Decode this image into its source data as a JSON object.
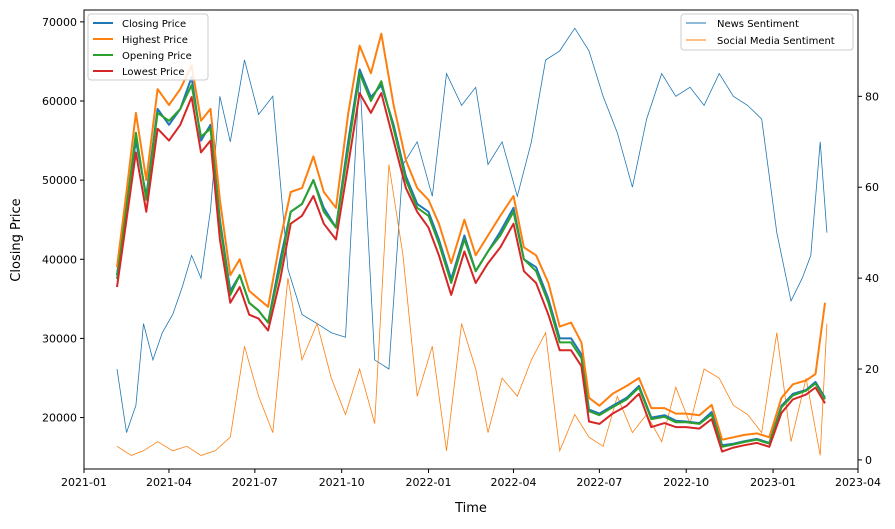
{
  "chart_data": {
    "type": "line",
    "xlabel": "Time",
    "ylabel": "Closing Price",
    "ylim": [
      13500,
      71500
    ],
    "y2lim": [
      -2.0,
      99.0
    ],
    "x_range": [
      "2021-01-01",
      "2023-04-01"
    ],
    "x_ticks": [
      "2021-01",
      "2021-04",
      "2021-07",
      "2021-10",
      "2022-01",
      "2022-04",
      "2022-07",
      "2022-10",
      "2023-01",
      "2023-04"
    ],
    "y_ticks": [
      20000,
      30000,
      40000,
      50000,
      60000,
      70000
    ],
    "y2_ticks": [
      0,
      20,
      40,
      60,
      80
    ],
    "legend_left": {
      "placement": "top-left",
      "entries": [
        {
          "label": "Closing Price",
          "color": "#1f77b4"
        },
        {
          "label": "Highest Price",
          "color": "#ff7f0e"
        },
        {
          "label": "Opening Price",
          "color": "#2ca02c"
        },
        {
          "label": "Lowest Price",
          "color": "#d62728"
        }
      ]
    },
    "legend_right": {
      "placement": "top-right",
      "entries": [
        {
          "label": "News Sentiment",
          "color": "#1f77b4"
        },
        {
          "label": "Social Media Sentiment",
          "color": "#ff7f0e"
        }
      ]
    },
    "price_series": {
      "x": [
        "2021-02-05",
        "2021-02-15",
        "2021-02-25",
        "2021-03-08",
        "2021-03-20",
        "2021-04-01",
        "2021-04-13",
        "2021-04-25",
        "2021-05-05",
        "2021-05-15",
        "2021-05-25",
        "2021-06-05",
        "2021-06-15",
        "2021-06-25",
        "2021-07-05",
        "2021-07-15",
        "2021-07-28",
        "2021-08-08",
        "2021-08-20",
        "2021-09-01",
        "2021-09-12",
        "2021-09-25",
        "2021-10-08",
        "2021-10-20",
        "2021-11-01",
        "2021-11-12",
        "2021-11-25",
        "2021-12-08",
        "2021-12-20",
        "2022-01-01",
        "2022-01-12",
        "2022-01-25",
        "2022-02-08",
        "2022-02-20",
        "2022-03-05",
        "2022-03-18",
        "2022-04-01",
        "2022-04-12",
        "2022-04-25",
        "2022-05-08",
        "2022-05-20",
        "2022-06-01",
        "2022-06-12",
        "2022-06-20",
        "2022-07-01",
        "2022-07-15",
        "2022-07-30",
        "2022-08-12",
        "2022-08-25",
        "2022-09-08",
        "2022-09-20",
        "2022-10-01",
        "2022-10-15",
        "2022-10-28",
        "2022-11-08",
        "2022-11-20",
        "2022-12-01",
        "2022-12-15",
        "2022-12-28",
        "2023-01-10",
        "2023-01-22",
        "2023-02-05",
        "2023-02-15",
        "2023-02-25"
      ],
      "close": [
        38000,
        47000,
        55000,
        48000,
        59000,
        57000,
        59000,
        63000,
        55000,
        57000,
        45000,
        36000,
        38000,
        34500,
        33500,
        32000,
        40000,
        46000,
        47000,
        50000,
        46500,
        44000,
        55000,
        64000,
        60500,
        62000,
        57000,
        50500,
        47000,
        46000,
        42500,
        37500,
        43000,
        38500,
        41000,
        43500,
        46500,
        40000,
        39000,
        35000,
        30000,
        30000,
        28000,
        21000,
        20500,
        21500,
        22500,
        24000,
        20000,
        20300,
        19600,
        19500,
        19300,
        20700,
        16500,
        16700,
        17000,
        17300,
        16800,
        21500,
        23000,
        23500,
        24500,
        22500
      ],
      "high": [
        39000,
        48500,
        58500,
        50000,
        61500,
        59500,
        61500,
        64500,
        57500,
        59000,
        47500,
        38000,
        40000,
        36000,
        35000,
        34000,
        42500,
        48500,
        49000,
        53000,
        48500,
        46500,
        58500,
        67000,
        63500,
        68500,
        59500,
        52500,
        49000,
        47500,
        44500,
        39500,
        45000,
        40500,
        43000,
        45500,
        48000,
        41500,
        40500,
        37000,
        31500,
        32000,
        29500,
        22500,
        21500,
        23000,
        24000,
        25000,
        21200,
        21200,
        20500,
        20500,
        20300,
        21600,
        17200,
        17500,
        17800,
        18000,
        17500,
        22500,
        24200,
        24700,
        25500,
        34500
      ],
      "open": [
        37500,
        46500,
        56000,
        47500,
        58500,
        57500,
        59000,
        62000,
        55500,
        56500,
        44500,
        35500,
        38000,
        34500,
        33500,
        32000,
        39000,
        46000,
        47000,
        50000,
        46000,
        44000,
        54000,
        63500,
        60000,
        62500,
        56500,
        50000,
        46500,
        45500,
        42000,
        37000,
        42500,
        38500,
        41000,
        43000,
        46000,
        40000,
        38500,
        34500,
        29500,
        29500,
        27500,
        20800,
        20300,
        21300,
        22300,
        23800,
        19800,
        20100,
        19400,
        19400,
        19200,
        20400,
        16300,
        16600,
        16900,
        17200,
        16700,
        21300,
        22800,
        23400,
        24300,
        22300
      ],
      "low": [
        36500,
        45000,
        53500,
        46000,
        56500,
        55000,
        57000,
        60500,
        53500,
        55000,
        42500,
        34500,
        36500,
        33000,
        32500,
        31000,
        37500,
        44500,
        45500,
        48000,
        44500,
        42500,
        52000,
        61000,
        58500,
        61000,
        55000,
        49000,
        46000,
        44000,
        40500,
        35500,
        41000,
        37000,
        39500,
        41500,
        44500,
        38500,
        37000,
        33000,
        28500,
        28500,
        26500,
        19500,
        19200,
        20500,
        21500,
        23000,
        18800,
        19300,
        18800,
        18800,
        18600,
        19800,
        15700,
        16200,
        16500,
        16800,
        16300,
        20600,
        22300,
        22900,
        23800,
        21800
      ]
    },
    "news_sentiment": {
      "x": [
        "2021-02-05",
        "2021-02-15",
        "2021-02-25",
        "2021-03-05",
        "2021-03-15",
        "2021-03-25",
        "2021-04-05",
        "2021-04-15",
        "2021-04-25",
        "2021-05-05",
        "2021-05-15",
        "2021-05-25",
        "2021-06-05",
        "2021-06-20",
        "2021-07-05",
        "2021-07-20",
        "2021-08-05",
        "2021-08-20",
        "2021-09-05",
        "2021-09-20",
        "2021-10-05",
        "2021-10-20",
        "2021-11-05",
        "2021-11-20",
        "2021-12-05",
        "2021-12-20",
        "2022-01-05",
        "2022-01-20",
        "2022-02-05",
        "2022-02-20",
        "2022-03-05",
        "2022-03-20",
        "2022-04-05",
        "2022-04-20",
        "2022-05-05",
        "2022-05-20",
        "2022-06-05",
        "2022-06-20",
        "2022-07-05",
        "2022-07-20",
        "2022-08-05",
        "2022-08-20",
        "2022-09-05",
        "2022-09-20",
        "2022-10-05",
        "2022-10-20",
        "2022-11-05",
        "2022-11-20",
        "2022-12-05",
        "2022-12-20",
        "2023-01-05",
        "2023-01-20",
        "2023-02-01",
        "2023-02-10",
        "2023-02-20",
        "2023-02-27"
      ],
      "values": [
        20,
        6,
        12,
        30,
        22,
        28,
        32,
        38,
        45,
        40,
        55,
        80,
        70,
        88,
        76,
        80,
        42,
        32,
        30,
        28,
        27,
        85,
        22,
        20,
        65,
        70,
        58,
        85,
        78,
        82,
        65,
        70,
        58,
        70,
        88,
        90,
        95,
        90,
        80,
        72,
        60,
        75,
        85,
        80,
        82,
        78,
        85,
        80,
        78,
        75,
        50,
        35,
        40,
        45,
        70,
        50
      ]
    },
    "social_sentiment": {
      "x": [
        "2021-02-05",
        "2021-02-20",
        "2021-03-05",
        "2021-03-20",
        "2021-04-05",
        "2021-04-20",
        "2021-05-05",
        "2021-05-20",
        "2021-06-05",
        "2021-06-20",
        "2021-07-05",
        "2021-07-20",
        "2021-08-05",
        "2021-08-20",
        "2021-09-05",
        "2021-09-20",
        "2021-10-05",
        "2021-10-20",
        "2021-11-05",
        "2021-11-20",
        "2021-12-05",
        "2021-12-20",
        "2022-01-05",
        "2022-01-20",
        "2022-02-05",
        "2022-02-20",
        "2022-03-05",
        "2022-03-20",
        "2022-04-05",
        "2022-04-20",
        "2022-05-05",
        "2022-05-20",
        "2022-06-05",
        "2022-06-20",
        "2022-07-05",
        "2022-07-20",
        "2022-08-05",
        "2022-08-20",
        "2022-09-05",
        "2022-09-20",
        "2022-10-05",
        "2022-10-20",
        "2022-11-05",
        "2022-11-20",
        "2022-12-05",
        "2022-12-20",
        "2023-01-05",
        "2023-01-20",
        "2023-02-05",
        "2023-02-20",
        "2023-02-27"
      ],
      "values": [
        3,
        1,
        2,
        4,
        2,
        3,
        1,
        2,
        5,
        25,
        14,
        6,
        40,
        22,
        30,
        18,
        10,
        20,
        8,
        65,
        45,
        14,
        25,
        2,
        30,
        20,
        6,
        18,
        14,
        22,
        28,
        2,
        10,
        5,
        3,
        14,
        6,
        10,
        4,
        16,
        8,
        20,
        18,
        12,
        10,
        6,
        28,
        4,
        18,
        1,
        30
      ]
    }
  }
}
